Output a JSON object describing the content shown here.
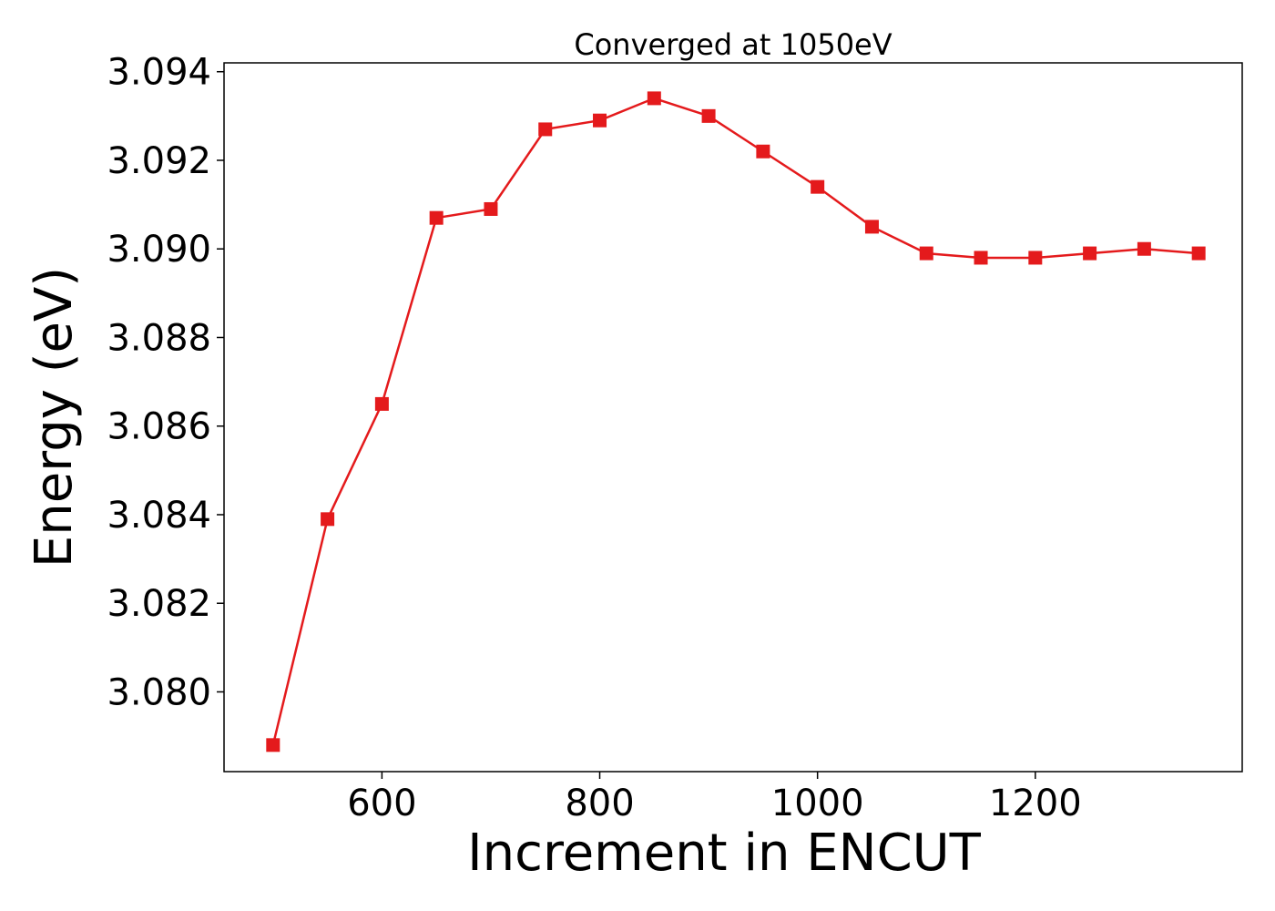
{
  "chart_data": {
    "type": "line",
    "title": "Converged at 1050eV",
    "xlabel": "Increment in ENCUT",
    "ylabel": "Energy (eV)",
    "xlim": [
      455,
      1390
    ],
    "ylim": [
      3.0782,
      3.0942
    ],
    "xticks": [
      600,
      800,
      1000,
      1200
    ],
    "xtick_labels": [
      "600",
      "800",
      "1000",
      "1200"
    ],
    "yticks": [
      3.08,
      3.082,
      3.084,
      3.086,
      3.088,
      3.09,
      3.092,
      3.094
    ],
    "ytick_labels": [
      "3.080",
      "3.082",
      "3.084",
      "3.086",
      "3.088",
      "3.090",
      "3.092",
      "3.094"
    ],
    "grid": false,
    "legend": "none",
    "marker": "square",
    "color": "#e41a1c",
    "series": [
      {
        "x": [
          500,
          550,
          600,
          650,
          700,
          750,
          800,
          850,
          900,
          950,
          1000,
          1050,
          1100,
          1150,
          1200,
          1250,
          1300,
          1350
        ],
        "y": [
          3.0788,
          3.0839,
          3.0865,
          3.0907,
          3.0909,
          3.0927,
          3.0929,
          3.0934,
          3.093,
          3.0922,
          3.0914,
          3.0905,
          3.0899,
          3.0898,
          3.0898,
          3.0899,
          3.09,
          3.0899
        ]
      }
    ]
  }
}
